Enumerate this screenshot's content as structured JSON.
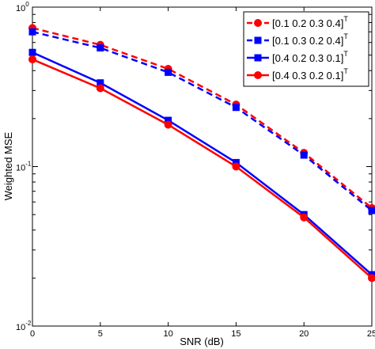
{
  "chart_data": {
    "type": "line",
    "title": "",
    "xlabel": "SNR (dB)",
    "ylabel": "Weighted MSE",
    "x": [
      0,
      5,
      10,
      15,
      20,
      25
    ],
    "xlim": [
      0,
      25
    ],
    "ylim": [
      0.01,
      1
    ],
    "y_scale": "log",
    "x_ticks": [
      "0",
      "5",
      "10",
      "15",
      "20",
      "25"
    ],
    "y_ticks": [
      {
        "base": "10",
        "exp": "-2",
        "value": 0.01
      },
      {
        "base": "10",
        "exp": "-1",
        "value": 0.1
      },
      {
        "base": "10",
        "exp": "0",
        "value": 1
      }
    ],
    "grid": false,
    "legend_position": "top-right",
    "series": [
      {
        "name": "[0.1 0.2 0.3 0.4]",
        "sup": "T",
        "color": "#ff0000",
        "linestyle": "dashed",
        "marker": "circle",
        "values": [
          0.74,
          0.58,
          0.41,
          0.245,
          0.122,
          0.055
        ]
      },
      {
        "name": "[0.1 0.3 0.2 0.4]",
        "sup": "T",
        "color": "#0000ff",
        "linestyle": "dashed",
        "marker": "square",
        "values": [
          0.7,
          0.555,
          0.39,
          0.235,
          0.118,
          0.053
        ]
      },
      {
        "name": "[0.4 0.2 0.3 0.1]",
        "sup": "T",
        "color": "#0000ff",
        "linestyle": "solid",
        "marker": "square",
        "values": [
          0.52,
          0.335,
          0.195,
          0.106,
          0.05,
          0.021
        ]
      },
      {
        "name": "[0.4 0.3 0.2 0.1]",
        "sup": "T",
        "color": "#ff0000",
        "linestyle": "solid",
        "marker": "circle",
        "values": [
          0.47,
          0.31,
          0.183,
          0.1,
          0.048,
          0.02
        ]
      }
    ]
  }
}
